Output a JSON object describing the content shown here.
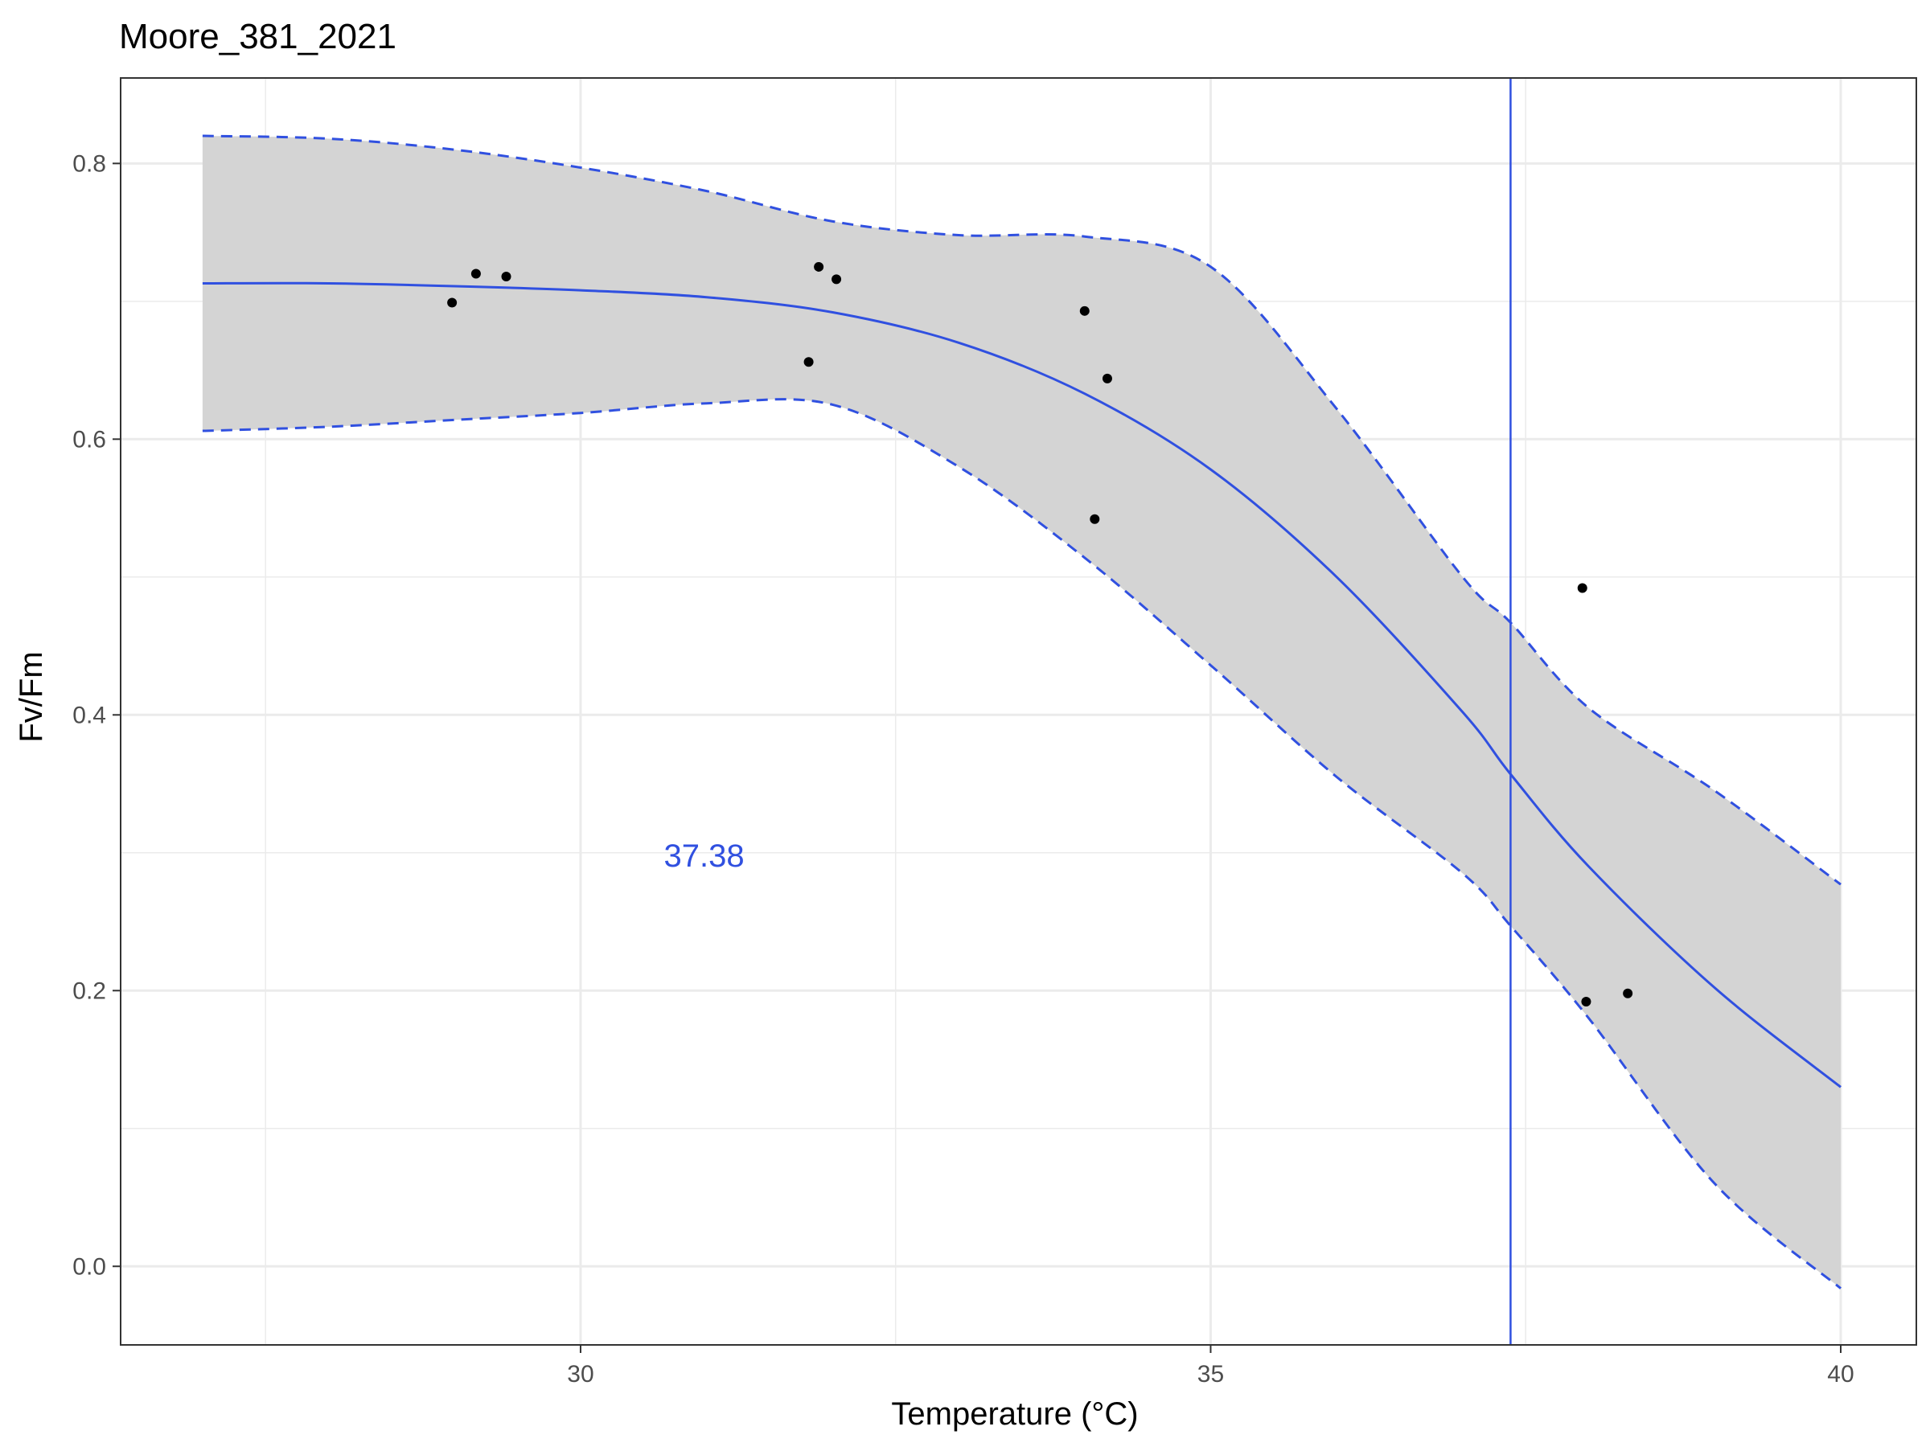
{
  "chart_data": {
    "type": "line",
    "title": "Moore_381_2021",
    "xlabel": "Temperature (°C)",
    "ylabel": "Fv/Fm",
    "xlim": [
      26.35,
      40.6
    ],
    "ylim": [
      -0.057,
      0.862
    ],
    "x_ticks": [
      30,
      35,
      40
    ],
    "x_tick_labels": [
      "30",
      "35",
      "40"
    ],
    "y_ticks": [
      0.0,
      0.2,
      0.4,
      0.6,
      0.8
    ],
    "y_tick_labels": [
      "0.0",
      "0.2",
      "0.4",
      "0.6",
      "0.8"
    ],
    "grid": true,
    "theme": "bw",
    "colors": {
      "fit_line": "#3050e0",
      "ci_band": "#d4d4d4",
      "points": "#000000",
      "vline": "#3050e0",
      "grid": "#ebebeb"
    },
    "series": [
      {
        "kind": "points",
        "x": [
          28.98,
          29.17,
          29.41,
          31.81,
          31.89,
          32.03,
          34.0,
          34.18,
          34.08,
          37.95,
          37.98,
          38.31
        ],
        "y": [
          0.699,
          0.72,
          0.718,
          0.656,
          0.725,
          0.716,
          0.693,
          0.644,
          0.542,
          0.492,
          0.192,
          0.198
        ]
      },
      {
        "kind": "fit",
        "x": [
          27.0,
          28.0,
          29.0,
          30.0,
          31.0,
          32.0,
          33.0,
          34.0,
          35.0,
          36.0,
          37.0,
          37.38,
          38.0,
          39.0,
          40.0
        ],
        "y": [
          0.713,
          0.713,
          0.711,
          0.708,
          0.703,
          0.692,
          0.67,
          0.633,
          0.578,
          0.5,
          0.402,
          0.357,
          0.29,
          0.202,
          0.13
        ]
      },
      {
        "kind": "ci_upper",
        "x": [
          27.0,
          28.0,
          29.0,
          30.0,
          31.0,
          32.0,
          33.0,
          34.0,
          35.0,
          36.0,
          37.0,
          37.38,
          38.0,
          39.0,
          40.0
        ],
        "y": [
          0.82,
          0.818,
          0.81,
          0.797,
          0.78,
          0.758,
          0.748,
          0.747,
          0.725,
          0.622,
          0.5,
          0.467,
          0.405,
          0.345,
          0.277
        ]
      },
      {
        "kind": "ci_lower",
        "x": [
          27.0,
          28.0,
          29.0,
          30.0,
          31.0,
          32.0,
          33.0,
          34.0,
          35.0,
          36.0,
          37.0,
          37.38,
          38.0,
          39.0,
          40.0
        ],
        "y": [
          0.606,
          0.609,
          0.614,
          0.619,
          0.626,
          0.625,
          0.58,
          0.514,
          0.436,
          0.355,
          0.285,
          0.247,
          0.18,
          0.06,
          -0.016
        ]
      }
    ],
    "vline_x": 37.38,
    "annotation": {
      "text": "37.38",
      "x": 30.98,
      "y": 0.298
    }
  }
}
